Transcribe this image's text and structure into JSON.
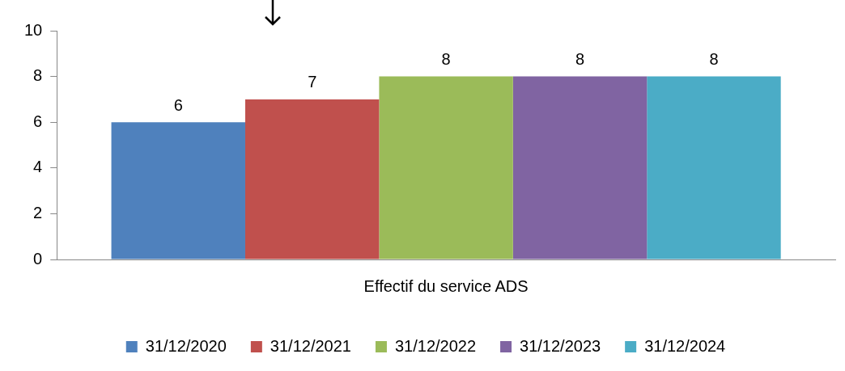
{
  "chart_data": {
    "type": "bar",
    "categories": [
      "Effectif du service ADS"
    ],
    "series": [
      {
        "name": "31/12/2020",
        "color": "#4f81bd",
        "values": [
          6
        ]
      },
      {
        "name": "31/12/2021",
        "color": "#c0504d",
        "values": [
          7
        ]
      },
      {
        "name": "31/12/2022",
        "color": "#9bbb59",
        "values": [
          8
        ]
      },
      {
        "name": "31/12/2023",
        "color": "#8064a2",
        "values": [
          8
        ]
      },
      {
        "name": "31/12/2024",
        "color": "#4bacc6",
        "values": [
          8
        ]
      }
    ],
    "ylim": [
      0,
      10
    ],
    "yticks": [
      0,
      2,
      4,
      6,
      8,
      10
    ],
    "grid": false,
    "legend": "bottom",
    "data_labels": true
  }
}
